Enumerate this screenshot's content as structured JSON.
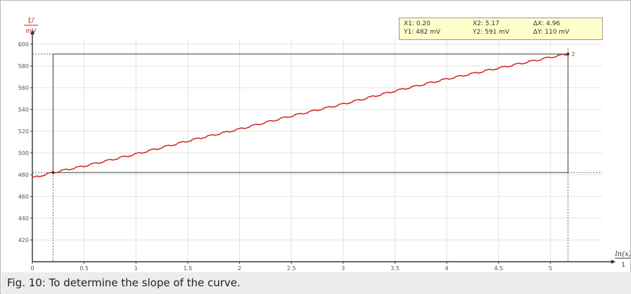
{
  "chart_data": {
    "type": "line",
    "ylabel_top": "U",
    "ylabel_bottom": "mV",
    "xlabel_top": "ln(x)",
    "xlabel_bottom": "1",
    "xlim": [
      0,
      5.5
    ],
    "ylim": [
      400,
      600
    ],
    "xticks": [
      0,
      0.5,
      1,
      1.5,
      2,
      2.5,
      3,
      3.5,
      4,
      4.5,
      5
    ],
    "xtick_labels": [
      "0",
      "0.5",
      "1",
      "1.5",
      "2",
      "2.5",
      "3",
      "3.5",
      "4",
      "4.5",
      "5"
    ],
    "yticks": [
      420,
      440,
      460,
      480,
      500,
      520,
      540,
      560,
      580,
      600
    ],
    "ytick_labels": [
      "420",
      "440",
      "460",
      "480",
      "500",
      "520",
      "540",
      "560",
      "580",
      "600"
    ],
    "grid": true,
    "series": [
      {
        "color": "#d42020",
        "x": [
          0,
          0.2,
          0.5,
          1.0,
          1.5,
          2.0,
          2.5,
          3.0,
          3.5,
          4.0,
          4.5,
          5.0,
          5.17
        ],
        "y": [
          477,
          482,
          488,
          499,
          511,
          522,
          534,
          545,
          557,
          568,
          578,
          588,
          591
        ]
      }
    ],
    "cursors": {
      "x1": 0.2,
      "y1": 482,
      "x2": 5.17,
      "y2": 591,
      "color": "#3a3a3a"
    },
    "readout": {
      "x1": "X1:  0.20",
      "y1": "Y1:  482 mV",
      "x2": "X2:  5.17",
      "y2": "Y2:  591 mV",
      "dx": "ΔX:  4.96",
      "dy": "ΔY:  110 mV"
    },
    "cursor_label": "2"
  },
  "caption": "Fig. 10: To determine the slope of the curve."
}
